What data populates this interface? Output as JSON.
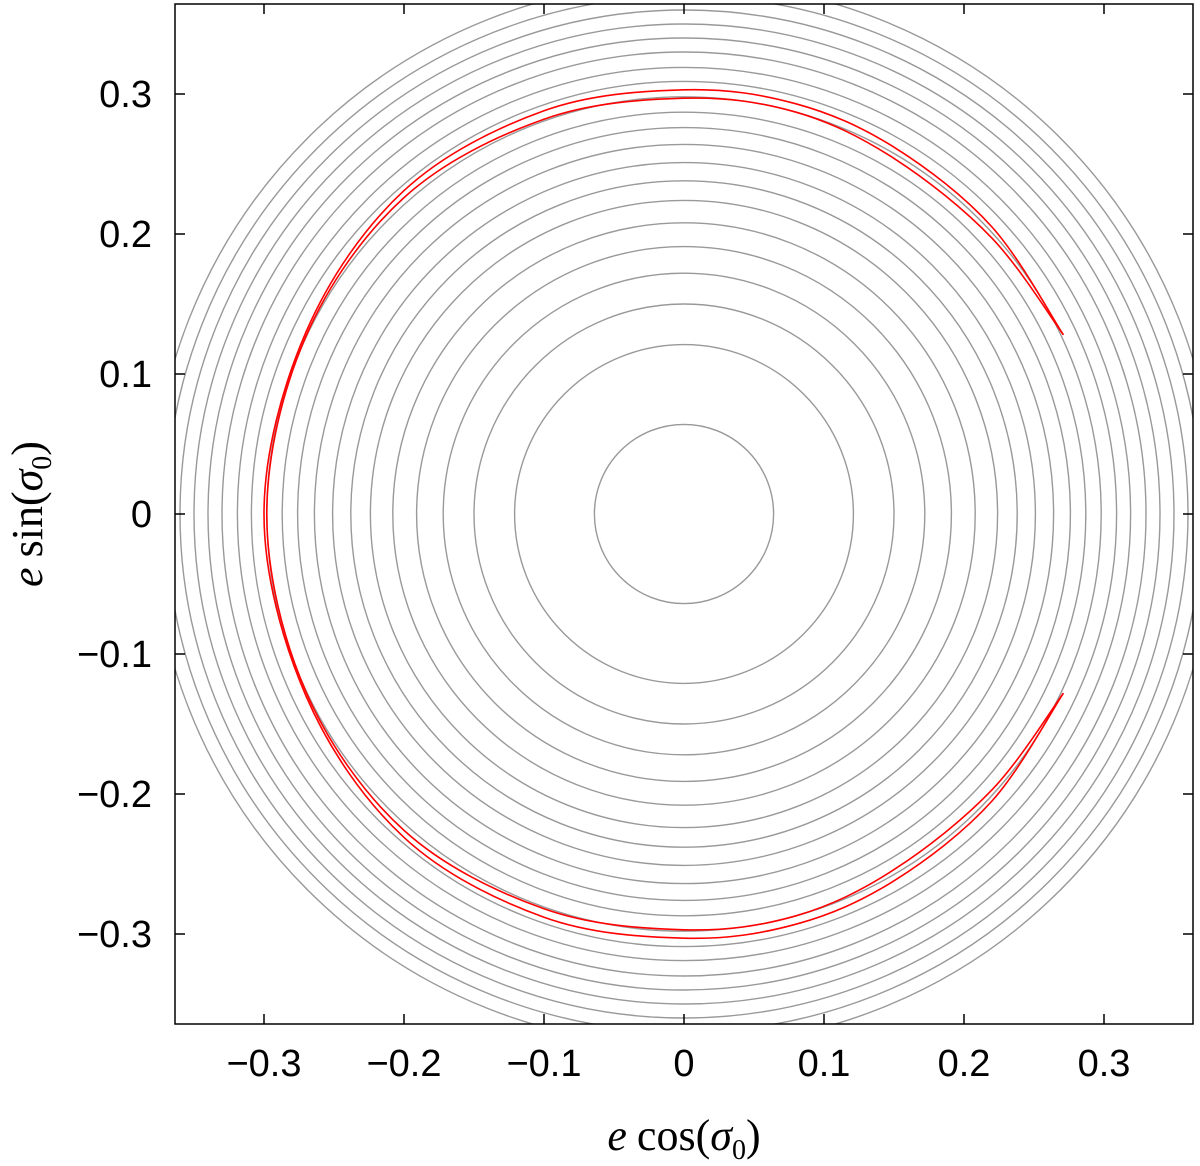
{
  "chart_data": {
    "type": "line",
    "title": "",
    "xlabel": {
      "prefix": "e",
      "func": "cos(",
      "var": "σ",
      "sub": "0",
      "close": ")"
    },
    "ylabel": {
      "prefix": "e",
      "func": "sin(",
      "var": "σ",
      "sub": "0",
      "close": ")"
    },
    "xlim": [
      -0.365,
      0.365
    ],
    "ylim": [
      -0.365,
      0.365
    ],
    "grid": false,
    "legend": "none",
    "x_ticks": [
      {
        "value": -0.3,
        "label": "−0.3"
      },
      {
        "value": -0.2,
        "label": "−0.2"
      },
      {
        "value": -0.1,
        "label": "−0.1"
      },
      {
        "value": 0,
        "label": "0"
      },
      {
        "value": 0.1,
        "label": "0.1"
      },
      {
        "value": 0.2,
        "label": "0.2"
      },
      {
        "value": 0.3,
        "label": "0.3"
      }
    ],
    "y_ticks": [
      {
        "value": 0.3,
        "label": "0.3"
      },
      {
        "value": 0.2,
        "label": "0.2"
      },
      {
        "value": 0.1,
        "label": "0.1"
      },
      {
        "value": 0,
        "label": "0"
      },
      {
        "value": -0.1,
        "label": "−0.1"
      },
      {
        "value": -0.2,
        "label": "−0.2"
      },
      {
        "value": -0.3,
        "label": "−0.3"
      }
    ],
    "series": [
      {
        "kind": "contour-circles",
        "color": "#999999",
        "radii": [
          0.064,
          0.121,
          0.15,
          0.172,
          0.191,
          0.208,
          0.224,
          0.238,
          0.251,
          0.264,
          0.276,
          0.287,
          0.298,
          0.309,
          0.319,
          0.33,
          0.34,
          0.35,
          0.36,
          0.37,
          0.38
        ]
      },
      {
        "kind": "separatrix",
        "color": "#ff0000",
        "outer": {
          "apex_x": -0.3,
          "points": [
            [
              0.271,
              0.128
            ],
            [
              0.22,
              0.205
            ],
            [
              0.15,
              0.262
            ],
            [
              0.08,
              0.293
            ],
            [
              0.0,
              0.303
            ],
            [
              -0.1,
              0.288
            ],
            [
              -0.2,
              0.231
            ],
            [
              -0.27,
              0.13
            ],
            [
              -0.3,
              0.0
            ],
            [
              -0.27,
              -0.13
            ],
            [
              -0.2,
              -0.231
            ],
            [
              -0.1,
              -0.288
            ],
            [
              0.0,
              -0.303
            ],
            [
              0.08,
              -0.293
            ],
            [
              0.15,
              -0.262
            ],
            [
              0.22,
              -0.205
            ],
            [
              0.271,
              -0.128
            ]
          ]
        },
        "inner": {
          "apex_x": -0.298,
          "points": [
            [
              0.271,
              0.128
            ],
            [
              0.22,
              0.197
            ],
            [
              0.15,
              0.254
            ],
            [
              0.08,
              0.287
            ],
            [
              0.0,
              0.297
            ],
            [
              -0.1,
              0.282
            ],
            [
              -0.2,
              0.226
            ],
            [
              -0.27,
              0.127
            ],
            [
              -0.298,
              0.0
            ],
            [
              -0.27,
              -0.127
            ],
            [
              -0.2,
              -0.226
            ],
            [
              -0.1,
              -0.282
            ],
            [
              0.0,
              -0.297
            ],
            [
              0.08,
              -0.287
            ],
            [
              0.15,
              -0.254
            ],
            [
              0.22,
              -0.197
            ],
            [
              0.271,
              -0.128
            ]
          ]
        }
      }
    ]
  }
}
